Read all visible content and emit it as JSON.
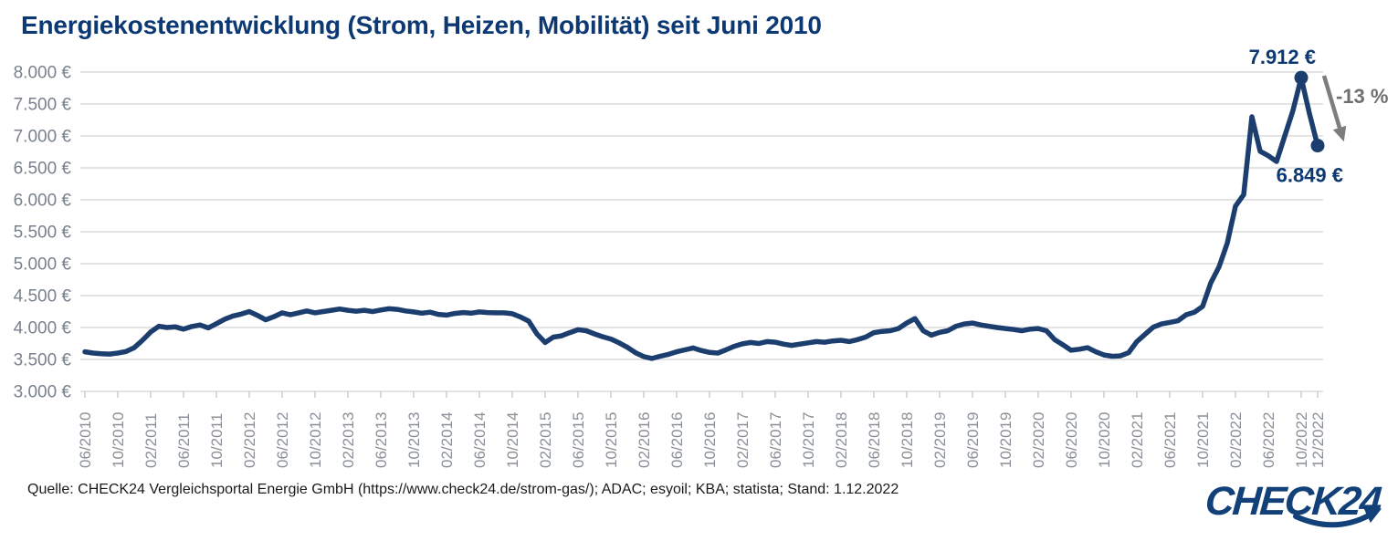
{
  "title": "Energiekostenentwicklung (Strom, Heizen, Mobilität) seit Juni 2010",
  "source": "Quelle: CHECK24 Vergleichsportal Energie GmbH (https://www.check24.de/strom-gas/); ADAC; esyoil; KBA; statista; Stand: 1.12.2022",
  "logo": {
    "text": "CHECK24"
  },
  "colors": {
    "title": "#0c3973",
    "line": "#1b3e6f",
    "annotation": "#0c3973",
    "arrow": "#7d7d7d",
    "change_label": "#6f6f6f",
    "grid": "#dcdcdc",
    "tick": "#c9ccd0",
    "y_label": "#79818d",
    "x_label": "#8a9097",
    "logo": "#124078"
  },
  "chart_data": {
    "type": "line",
    "title": "Energiekostenentwicklung (Strom, Heizen, Mobilität) seit Juni 2010",
    "unit": "€",
    "x_start": "06/2010",
    "x_end": "12/2022",
    "x_interval": "monthly",
    "ylim": [
      3000,
      8000
    ],
    "grid": true,
    "legend": "none",
    "y_ticks": [
      {
        "value": 8000,
        "label": "8.000 €"
      },
      {
        "value": 7500,
        "label": "7.500 €"
      },
      {
        "value": 7000,
        "label": "7.000 €"
      },
      {
        "value": 6500,
        "label": "6.500 €"
      },
      {
        "value": 6000,
        "label": "6.000 €"
      },
      {
        "value": 5500,
        "label": "5.500 €"
      },
      {
        "value": 5000,
        "label": "5.000 €"
      },
      {
        "value": 4500,
        "label": "4.500 €"
      },
      {
        "value": 4000,
        "label": "4.000 €"
      },
      {
        "value": 3500,
        "label": "3.500 €"
      },
      {
        "value": 3000,
        "label": "3.000 €"
      }
    ],
    "x_ticks": [
      {
        "label": "06/2010",
        "month_index": 0
      },
      {
        "label": "10/2010",
        "month_index": 4
      },
      {
        "label": "02/2011",
        "month_index": 8
      },
      {
        "label": "06/2011",
        "month_index": 12
      },
      {
        "label": "10/2011",
        "month_index": 16
      },
      {
        "label": "02/2012",
        "month_index": 20
      },
      {
        "label": "06/2012",
        "month_index": 24
      },
      {
        "label": "10/2012",
        "month_index": 28
      },
      {
        "label": "02/2013",
        "month_index": 32
      },
      {
        "label": "06/2013",
        "month_index": 36
      },
      {
        "label": "10/2013",
        "month_index": 40
      },
      {
        "label": "02/2014",
        "month_index": 44
      },
      {
        "label": "06/2014",
        "month_index": 48
      },
      {
        "label": "10/2014",
        "month_index": 52
      },
      {
        "label": "02/2015",
        "month_index": 56
      },
      {
        "label": "06/2015",
        "month_index": 60
      },
      {
        "label": "10/2015",
        "month_index": 64
      },
      {
        "label": "02/2016",
        "month_index": 68
      },
      {
        "label": "06/2016",
        "month_index": 72
      },
      {
        "label": "10/2016",
        "month_index": 76
      },
      {
        "label": "02/2017",
        "month_index": 80
      },
      {
        "label": "06/2017",
        "month_index": 84
      },
      {
        "label": "10/2017",
        "month_index": 88
      },
      {
        "label": "02/2018",
        "month_index": 92
      },
      {
        "label": "06/2018",
        "month_index": 96
      },
      {
        "label": "10/2018",
        "month_index": 100
      },
      {
        "label": "02/2019",
        "month_index": 104
      },
      {
        "label": "06/2019",
        "month_index": 108
      },
      {
        "label": "10/2019",
        "month_index": 112
      },
      {
        "label": "02/2020",
        "month_index": 116
      },
      {
        "label": "06/2020",
        "month_index": 120
      },
      {
        "label": "10/2020",
        "month_index": 124
      },
      {
        "label": "02/2021",
        "month_index": 128
      },
      {
        "label": "06/2021",
        "month_index": 132
      },
      {
        "label": "10/2021",
        "month_index": 136
      },
      {
        "label": "02/2022",
        "month_index": 140
      },
      {
        "label": "06/2022",
        "month_index": 144
      },
      {
        "label": "10/2022",
        "month_index": 148
      },
      {
        "label": "12/2022",
        "month_index": 150
      }
    ],
    "series": [
      {
        "name": "Energiekosten (Strom, Heizen, Mobilität)",
        "values": [
          3620,
          3600,
          3590,
          3585,
          3600,
          3625,
          3685,
          3800,
          3930,
          4020,
          4000,
          4010,
          3975,
          4015,
          4040,
          3995,
          4060,
          4130,
          4180,
          4210,
          4250,
          4190,
          4120,
          4170,
          4230,
          4200,
          4230,
          4260,
          4230,
          4250,
          4270,
          4290,
          4270,
          4255,
          4270,
          4250,
          4275,
          4295,
          4285,
          4260,
          4245,
          4225,
          4240,
          4205,
          4195,
          4220,
          4235,
          4225,
          4245,
          4235,
          4230,
          4230,
          4215,
          4165,
          4100,
          3900,
          3765,
          3850,
          3870,
          3920,
          3965,
          3950,
          3900,
          3855,
          3820,
          3760,
          3690,
          3605,
          3545,
          3515,
          3550,
          3580,
          3620,
          3650,
          3680,
          3640,
          3610,
          3600,
          3650,
          3705,
          3745,
          3765,
          3750,
          3780,
          3770,
          3740,
          3720,
          3740,
          3760,
          3780,
          3770,
          3790,
          3800,
          3780,
          3810,
          3850,
          3920,
          3940,
          3950,
          3985,
          4070,
          4140,
          3950,
          3880,
          3925,
          3950,
          4020,
          4055,
          4070,
          4040,
          4020,
          4000,
          3985,
          3970,
          3950,
          3975,
          3985,
          3950,
          3810,
          3730,
          3645,
          3660,
          3685,
          3620,
          3570,
          3550,
          3555,
          3605,
          3780,
          3895,
          4005,
          4055,
          4080,
          4105,
          4200,
          4240,
          4330,
          4700,
          4950,
          5320,
          5900,
          6080,
          7300,
          6760,
          6690,
          6600,
          7000,
          7400,
          7912,
          7350,
          6849
        ]
      }
    ],
    "annotations": {
      "peak": {
        "label": "7.912 €",
        "value": 7912,
        "month": "10/2022",
        "month_index": 148
      },
      "latest": {
        "label": "6.849 €",
        "value": 6849,
        "month": "12/2022",
        "month_index": 150
      },
      "change": {
        "label": "-13 %"
      }
    }
  }
}
